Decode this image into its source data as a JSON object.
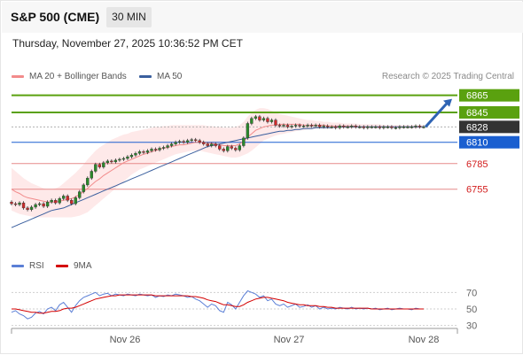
{
  "header": {
    "symbol": "S&P 500 (CME)",
    "timeframe": "30 MIN",
    "timestamp": "Thursday, November 27, 2025 10:36:52 PM CET"
  },
  "legend": {
    "items": [
      {
        "label": "MA 20 + Bollinger Bands",
        "color": "#f28b8b"
      },
      {
        "label": "MA 50",
        "color": "#3a5f9e"
      }
    ],
    "credit": "Research © 2025 Trading Central"
  },
  "rsi_legend": {
    "items": [
      {
        "label": "RSI",
        "color": "#5b7fd6"
      },
      {
        "label": "9MA",
        "color": "#d40000"
      }
    ]
  },
  "chart_data": [
    {
      "type": "candlestick",
      "x_axis": {
        "tick_labels": [
          "Nov 26",
          "Nov 27",
          "Nov 28"
        ]
      },
      "y_range": [
        6680,
        6874
      ],
      "levels": [
        {
          "value": 6865,
          "label": "6865",
          "style": "resistance",
          "color": "#5aa10f"
        },
        {
          "value": 6845,
          "label": "6845",
          "style": "resistance",
          "color": "#5aa10f"
        },
        {
          "value": 6828,
          "label": "6828",
          "style": "current",
          "color": "#333333"
        },
        {
          "value": 6810,
          "label": "6810",
          "style": "pivot",
          "color": "#1a5fd0"
        },
        {
          "value": 6785,
          "label": "6785",
          "style": "support",
          "color": "#e58a8a"
        },
        {
          "value": 6755,
          "label": "6755",
          "style": "support",
          "color": "#e58a8a"
        }
      ],
      "closes": [
        6738,
        6737,
        6739,
        6733,
        6731,
        6734,
        6737,
        6738,
        6735,
        6740,
        6742,
        6739,
        6744,
        6747,
        6742,
        6738,
        6745,
        6752,
        6760,
        6768,
        6776,
        6784,
        6781,
        6786,
        6788,
        6787,
        6789,
        6790,
        6791,
        6793,
        6795,
        6797,
        6799,
        6798,
        6800,
        6802,
        6801,
        6803,
        6804,
        6806,
        6808,
        6810,
        6811,
        6810,
        6812,
        6813,
        6812,
        6810,
        6808,
        6806,
        6808,
        6806,
        6802,
        6800,
        6805,
        6803,
        6801,
        6806,
        6815,
        6832,
        6838,
        6840,
        6836,
        6838,
        6834,
        6836,
        6830,
        6829,
        6830,
        6828,
        6829,
        6830,
        6829,
        6829,
        6830,
        6829,
        6830,
        6828,
        6829,
        6828,
        6828,
        6827,
        6829,
        6828,
        6828,
        6829,
        6828,
        6828,
        6827,
        6828,
        6828,
        6828,
        6827,
        6828,
        6828,
        6827,
        6827,
        6828,
        6828,
        6828,
        6828,
        6829,
        6828,
        6828
      ],
      "ma20": [
        6755,
        6752,
        6750,
        6747,
        6745,
        6744,
        6743,
        6742,
        6741,
        6740,
        6740,
        6740,
        6741,
        6742,
        6743,
        6744,
        6746,
        6749,
        6752,
        6756,
        6760,
        6764,
        6767,
        6771,
        6774,
        6777,
        6780,
        6783,
        6786,
        6788,
        6790,
        6792,
        6794,
        6796,
        6797,
        6799,
        6800,
        6802,
        6803,
        6804,
        6805,
        6806,
        6807,
        6807,
        6808,
        6809,
        6810,
        6810,
        6810,
        6809,
        6809,
        6808,
        6807,
        6806,
        6806,
        6806,
        6806,
        6808,
        6811,
        6816,
        6820,
        6824,
        6826,
        6828,
        6829,
        6830,
        6830,
        6831,
        6831,
        6831,
        6831,
        6831,
        6831,
        6830,
        6830,
        6830,
        6830,
        6830,
        6830,
        6829,
        6829,
        6829,
        6829,
        6829,
        6829,
        6829,
        6829,
        6828,
        6828,
        6828,
        6828,
        6828,
        6828,
        6828,
        6828,
        6828,
        6828,
        6828,
        6828,
        6828,
        6828,
        6828,
        6828,
        6828
      ],
      "bollinger_upper": [
        6780,
        6776,
        6772,
        6768,
        6765,
        6762,
        6760,
        6758,
        6756,
        6755,
        6755,
        6756,
        6758,
        6762,
        6766,
        6770,
        6774,
        6779,
        6784,
        6790,
        6795,
        6800,
        6804,
        6807,
        6810,
        6813,
        6815,
        6817,
        6819,
        6820,
        6822,
        6823,
        6824,
        6825,
        6826,
        6827,
        6828,
        6828,
        6829,
        6829,
        6830,
        6830,
        6830,
        6830,
        6830,
        6830,
        6830,
        6830,
        6830,
        6829,
        6829,
        6828,
        6828,
        6827,
        6827,
        6827,
        6828,
        6830,
        6834,
        6840,
        6845,
        6848,
        6850,
        6850,
        6849,
        6847,
        6845,
        6843,
        6842,
        6841,
        6840,
        6839,
        6838,
        6837,
        6836,
        6836,
        6835,
        6835,
        6834,
        6834,
        6833,
        6833,
        6833,
        6832,
        6832,
        6832,
        6832,
        6831,
        6831,
        6831,
        6831,
        6831,
        6831,
        6830,
        6830,
        6830,
        6830,
        6830,
        6830,
        6830,
        6830,
        6830,
        6830,
        6830
      ],
      "bollinger_lower": [
        6730,
        6728,
        6726,
        6725,
        6724,
        6723,
        6722,
        6722,
        6722,
        6722,
        6722,
        6722,
        6722,
        6722,
        6722,
        6722,
        6723,
        6724,
        6726,
        6728,
        6732,
        6736,
        6740,
        6744,
        6748,
        6752,
        6756,
        6760,
        6764,
        6768,
        6772,
        6775,
        6778,
        6780,
        6782,
        6784,
        6786,
        6788,
        6790,
        6792,
        6794,
        6796,
        6797,
        6798,
        6799,
        6800,
        6800,
        6800,
        6799,
        6798,
        6797,
        6796,
        6795,
        6794,
        6793,
        6792,
        6792,
        6793,
        6795,
        6797,
        6800,
        6804,
        6808,
        6812,
        6814,
        6816,
        6818,
        6819,
        6820,
        6821,
        6822,
        6823,
        6824,
        6824,
        6825,
        6825,
        6826,
        6826,
        6826,
        6826,
        6826,
        6826,
        6826,
        6826,
        6826,
        6826,
        6826,
        6826,
        6826,
        6826,
        6826,
        6826,
        6826,
        6826,
        6826,
        6826,
        6826,
        6826,
        6826,
        6826,
        6826,
        6826,
        6826,
        6826
      ],
      "ma50": [
        6710,
        6712,
        6714,
        6716,
        6718,
        6720,
        6722,
        6724,
        6726,
        6728,
        6730,
        6731,
        6732,
        6733,
        6735,
        6737,
        6739,
        6741,
        6743,
        6745,
        6747,
        6749,
        6751,
        6753,
        6755,
        6757,
        6759,
        6761,
        6763,
        6765,
        6767,
        6769,
        6771,
        6773,
        6775,
        6777,
        6779,
        6781,
        6783,
        6785,
        6787,
        6789,
        6791,
        6793,
        6795,
        6797,
        6799,
        6801,
        6803,
        6805,
        6806,
        6807,
        6808,
        6809,
        6810,
        6811,
        6812,
        6813,
        6814,
        6815,
        6816,
        6817,
        6818,
        6819,
        6820,
        6821,
        6822,
        6823,
        6823,
        6824,
        6824,
        6825,
        6825,
        6826,
        6826,
        6826,
        6827,
        6827,
        6827,
        6827,
        6827,
        6828,
        6828,
        6828,
        6828,
        6828,
        6828,
        6828,
        6828,
        6828,
        6828,
        6828,
        6828,
        6828,
        6828,
        6828,
        6828,
        6828,
        6828,
        6828,
        6828,
        6828,
        6828,
        6828
      ],
      "forecast_arrow": {
        "from": 6828,
        "to": 6865
      }
    },
    {
      "type": "line",
      "title": "RSI",
      "y_ticks": [
        70,
        50,
        30
      ],
      "y_range": [
        20,
        80
      ],
      "rsi": [
        46,
        48,
        44,
        42,
        38,
        40,
        45,
        47,
        44,
        50,
        52,
        48,
        55,
        58,
        52,
        46,
        54,
        60,
        64,
        66,
        68,
        70,
        66,
        68,
        69,
        66,
        68,
        67,
        66,
        68,
        67,
        66,
        68,
        67,
        66,
        67,
        64,
        66,
        65,
        67,
        66,
        68,
        67,
        66,
        64,
        65,
        62,
        60,
        56,
        52,
        56,
        54,
        48,
        46,
        58,
        55,
        50,
        58,
        66,
        72,
        70,
        68,
        64,
        66,
        60,
        62,
        56,
        54,
        56,
        52,
        54,
        56,
        52,
        53,
        55,
        52,
        54,
        50,
        52,
        50,
        51,
        50,
        52,
        51,
        50,
        52,
        50,
        51,
        50,
        51,
        50,
        51,
        49,
        50,
        51,
        49,
        50,
        51,
        50,
        50,
        49,
        51,
        50,
        50
      ],
      "ma9": [
        50,
        50,
        49,
        48,
        47,
        46,
        46,
        45,
        45,
        46,
        47,
        47,
        48,
        50,
        51,
        51,
        52,
        54,
        56,
        58,
        60,
        62,
        63,
        64,
        65,
        66,
        66,
        67,
        67,
        67,
        67,
        67,
        67,
        67,
        67,
        67,
        66,
        66,
        66,
        66,
        66,
        66,
        66,
        66,
        66,
        65,
        65,
        64,
        63,
        61,
        60,
        59,
        57,
        55,
        55,
        54,
        53,
        53,
        55,
        58,
        60,
        62,
        63,
        64,
        64,
        63,
        62,
        61,
        60,
        58,
        57,
        56,
        55,
        55,
        54,
        54,
        54,
        53,
        53,
        52,
        52,
        51,
        51,
        51,
        51,
        51,
        51,
        51,
        51,
        51,
        50,
        50,
        50,
        50,
        50,
        50,
        50,
        50,
        50,
        50,
        50,
        50,
        50,
        50
      ]
    }
  ]
}
